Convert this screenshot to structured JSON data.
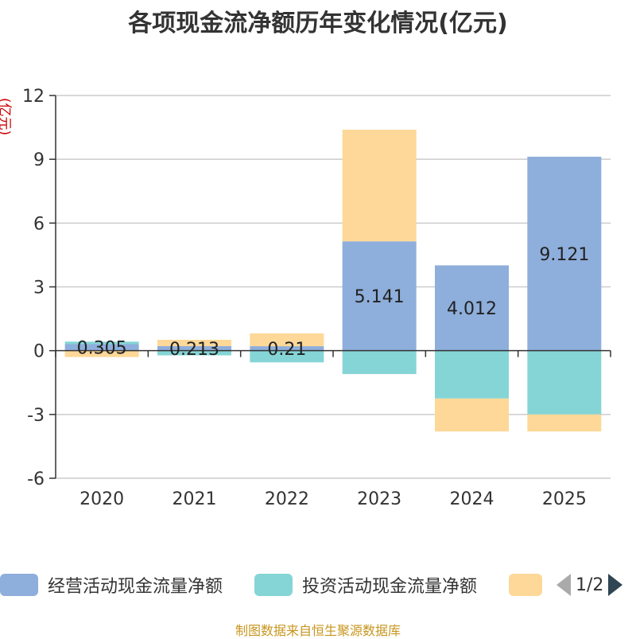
{
  "chart_data": {
    "type": "bar",
    "stacked": true,
    "title": "各项现金流净额历年变化情况(亿元)",
    "ylabel": "(亿元)",
    "categories": [
      "2020",
      "2021",
      "2022",
      "2023",
      "2024",
      "2025"
    ],
    "ylim": [
      -6,
      12
    ],
    "yticks": [
      12,
      9,
      6,
      3,
      0,
      -3,
      -6
    ],
    "series": [
      {
        "name": "经营活动现金流量净额",
        "color": "#8eaedb",
        "values": [
          0.305,
          0.213,
          0.21,
          5.141,
          4.012,
          9.121
        ],
        "labels": [
          "0.305",
          "0.213",
          "0.21",
          "5.141",
          "4.012",
          "9.121"
        ]
      },
      {
        "name": "投资活动现金流量净额",
        "color": "#85d5d6",
        "values": [
          0.12,
          -0.22,
          -0.55,
          -1.1,
          -2.25,
          -3.0
        ]
      },
      {
        "name": "",
        "color": "#fdd898",
        "values": [
          -0.3,
          0.3,
          0.6,
          5.25,
          -1.55,
          -0.8
        ]
      }
    ],
    "legend": {
      "position": "bottom",
      "items": [
        "经营活动现金流量净额",
        "投资活动现金流量净额",
        ""
      ],
      "page": "1/2"
    },
    "source": "制图数据来自恒生聚源数据库"
  }
}
